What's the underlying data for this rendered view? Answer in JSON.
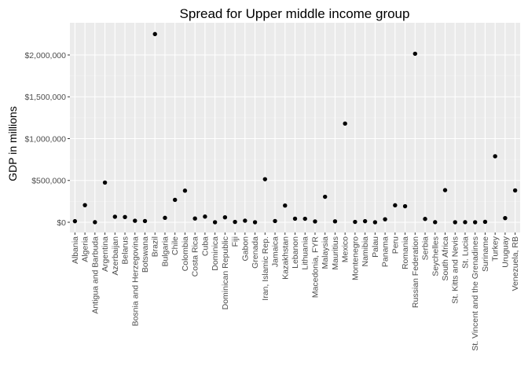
{
  "chart_data": {
    "type": "scatter",
    "title": "Spread for Upper middle income group",
    "xlabel": "",
    "ylabel": "GDP in millions",
    "ylim": [
      -90000,
      2350000
    ],
    "yticks": [
      0,
      500000,
      1000000,
      1500000,
      2000000
    ],
    "ytick_labels": [
      "$0",
      "$500,000",
      "$1,000,000",
      "$1,500,000",
      "$2,000,000"
    ],
    "grid": true,
    "point_color": "#000000",
    "panel_color": "#ebebeb",
    "categories": [
      "Albania",
      "Algeria",
      "Antigua and Barbuda",
      "Argentina",
      "Azerbaijan",
      "Belarus",
      "Bosnia and Herzegovina",
      "Botswana",
      "Brazil",
      "Bulgaria",
      "Chile",
      "Colombia",
      "Costa Rica",
      "Cuba",
      "Dominica",
      "Dominican Republic",
      "Fiji",
      "Gabon",
      "Grenada",
      "Iran, Islamic Rep.",
      "Jamaica",
      "Kazakhstan",
      "Lebanon",
      "Lithuania",
      "Macedonia, FYR",
      "Malaysia",
      "Mauritius",
      "Mexico",
      "Montenegro",
      "Namibia",
      "Palau",
      "Panama",
      "Peru",
      "Romania",
      "Russian Federation",
      "Serbia",
      "Seychelles",
      "South Africa",
      "St. Kitts and Nevis",
      "St. Lucia",
      "St. Vincent and the Grenadines",
      "Suriname",
      "Turkey",
      "Uruguay",
      "Venezuela, RB"
    ],
    "values": [
      13000,
      205000,
      1200,
      475000,
      66000,
      63000,
      18000,
      15000,
      2250000,
      53000,
      268000,
      378000,
      45000,
      68000,
      500,
      59000,
      4000,
      19000,
      800,
      515000,
      15000,
      200000,
      43000,
      42000,
      10000,
      305000,
      11000,
      1180000,
      4500,
      13000,
      200,
      36000,
      203000,
      192000,
      2015000,
      40000,
      1400,
      384000,
      800,
      1300,
      700,
      5000,
      789000,
      50000,
      381000
    ]
  }
}
